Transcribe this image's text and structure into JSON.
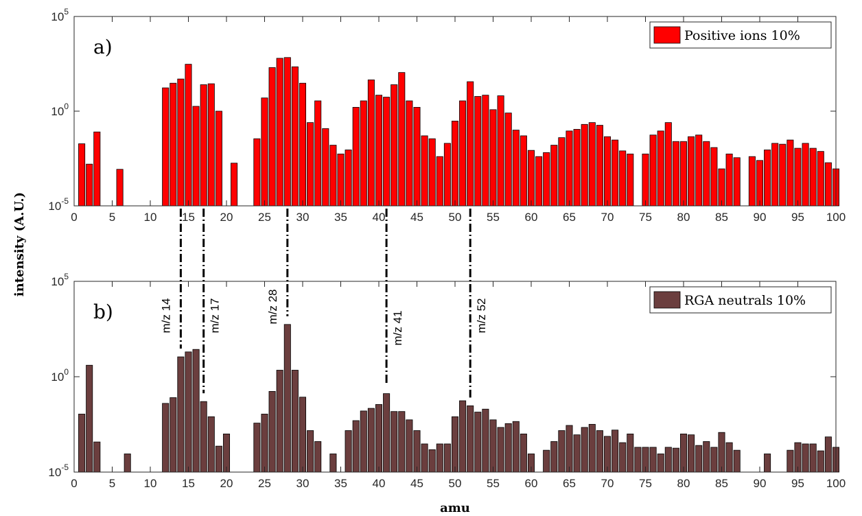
{
  "chart_data": {
    "type": "bar",
    "ylabel": "intensity (A.U.)",
    "xlabel": "amu",
    "xlim": [
      0,
      100
    ],
    "x_ticks": [
      0,
      5,
      10,
      15,
      20,
      25,
      30,
      35,
      40,
      45,
      50,
      55,
      60,
      65,
      70,
      75,
      80,
      85,
      90,
      95,
      100
    ],
    "y_scale": "log",
    "ylim": [
      1e-05,
      100000.0
    ],
    "y_tick_labels": [
      {
        "base": "10",
        "exp": "5"
      },
      {
        "base": "10",
        "exp": "0"
      },
      {
        "base": "10",
        "exp": "-5"
      }
    ],
    "panels": [
      {
        "label": "a)",
        "series_name": "Positive ions 10%",
        "color": "#ff0000",
        "bars": [
          [
            1,
            0.019
          ],
          [
            2,
            0.0016
          ],
          [
            3,
            0.08
          ],
          [
            6,
            0.00085
          ],
          [
            12,
            17
          ],
          [
            13,
            30
          ],
          [
            14,
            50
          ],
          [
            15,
            300
          ],
          [
            16,
            1.8
          ],
          [
            17,
            25
          ],
          [
            18,
            28
          ],
          [
            19,
            1.0
          ],
          [
            21,
            0.0018
          ],
          [
            24,
            0.035
          ],
          [
            25,
            5
          ],
          [
            26,
            200
          ],
          [
            27,
            620
          ],
          [
            28,
            680
          ],
          [
            29,
            220
          ],
          [
            30,
            30
          ],
          [
            31,
            0.25
          ],
          [
            32,
            3.5
          ],
          [
            33,
            0.12
          ],
          [
            34,
            0.016
          ],
          [
            35,
            0.0055
          ],
          [
            36,
            0.009
          ],
          [
            37,
            1.6
          ],
          [
            38,
            3.5
          ],
          [
            39,
            45
          ],
          [
            40,
            7
          ],
          [
            41,
            5.5
          ],
          [
            42,
            25
          ],
          [
            43,
            110
          ],
          [
            44,
            3.5
          ],
          [
            45,
            1.6
          ],
          [
            46,
            0.05
          ],
          [
            47,
            0.035
          ],
          [
            48,
            0.004
          ],
          [
            49,
            0.02
          ],
          [
            50,
            0.3
          ],
          [
            51,
            3.5
          ],
          [
            52,
            36
          ],
          [
            53,
            6
          ],
          [
            54,
            7
          ],
          [
            55,
            1.2
          ],
          [
            56,
            6.5
          ],
          [
            57,
            0.8
          ],
          [
            58,
            0.1
          ],
          [
            59,
            0.05
          ],
          [
            60,
            0.0085
          ],
          [
            61,
            0.004
          ],
          [
            62,
            0.0065
          ],
          [
            63,
            0.016
          ],
          [
            64,
            0.04
          ],
          [
            65,
            0.09
          ],
          [
            66,
            0.11
          ],
          [
            67,
            0.2
          ],
          [
            68,
            0.25
          ],
          [
            69,
            0.18
          ],
          [
            70,
            0.045
          ],
          [
            71,
            0.03
          ],
          [
            72,
            0.008
          ],
          [
            73,
            0.0055
          ],
          [
            75,
            0.0055
          ],
          [
            76,
            0.055
          ],
          [
            77,
            0.09
          ],
          [
            78,
            0.25
          ],
          [
            79,
            0.025
          ],
          [
            80,
            0.025
          ],
          [
            81,
            0.045
          ],
          [
            82,
            0.055
          ],
          [
            83,
            0.025
          ],
          [
            84,
            0.012
          ],
          [
            85,
            0.0009
          ],
          [
            86,
            0.0055
          ],
          [
            87,
            0.0035
          ],
          [
            89,
            0.004
          ],
          [
            90,
            0.0025
          ],
          [
            91,
            0.009
          ],
          [
            92,
            0.02
          ],
          [
            93,
            0.018
          ],
          [
            94,
            0.03
          ],
          [
            95,
            0.011
          ],
          [
            96,
            0.02
          ],
          [
            97,
            0.011
          ],
          [
            98,
            0.0075
          ],
          [
            99,
            0.0019
          ],
          [
            100,
            0.0009
          ]
        ]
      },
      {
        "label": "b)",
        "series_name": "RGA neutrals 10%",
        "color": "#6b3e3e",
        "bars": [
          [
            1,
            0.011
          ],
          [
            2,
            4
          ],
          [
            3,
            0.00038
          ],
          [
            7,
            9e-05
          ],
          [
            12,
            0.04
          ],
          [
            13,
            0.08
          ],
          [
            14,
            11
          ],
          [
            15,
            20
          ],
          [
            16,
            27
          ],
          [
            17,
            0.05
          ],
          [
            18,
            0.008
          ],
          [
            19,
            0.00023
          ],
          [
            20,
            0.001
          ],
          [
            24,
            0.0037
          ],
          [
            25,
            0.011
          ],
          [
            26,
            0.17
          ],
          [
            27,
            2.2
          ],
          [
            28,
            550
          ],
          [
            29,
            2.2
          ],
          [
            30,
            0.085
          ],
          [
            31,
            0.0015
          ],
          [
            32,
            0.0004
          ],
          [
            34,
            9e-05
          ],
          [
            36,
            0.0015
          ],
          [
            37,
            0.005
          ],
          [
            38,
            0.016
          ],
          [
            39,
            0.022
          ],
          [
            40,
            0.035
          ],
          [
            41,
            0.13
          ],
          [
            42,
            0.015
          ],
          [
            43,
            0.015
          ],
          [
            44,
            0.0055
          ],
          [
            45,
            0.0015
          ],
          [
            46,
            0.0003
          ],
          [
            47,
            0.00015
          ],
          [
            48,
            0.0003
          ],
          [
            49,
            0.0003
          ],
          [
            50,
            0.008
          ],
          [
            51,
            0.055
          ],
          [
            52,
            0.03
          ],
          [
            53,
            0.014
          ],
          [
            54,
            0.02
          ],
          [
            55,
            0.0055
          ],
          [
            56,
            0.0022
          ],
          [
            57,
            0.0035
          ],
          [
            58,
            0.0045
          ],
          [
            59,
            0.001
          ],
          [
            60,
            9e-05
          ],
          [
            62,
            0.00014
          ],
          [
            63,
            0.0004
          ],
          [
            64,
            0.0015
          ],
          [
            65,
            0.0028
          ],
          [
            66,
            0.0009
          ],
          [
            67,
            0.0022
          ],
          [
            68,
            0.0032
          ],
          [
            69,
            0.0015
          ],
          [
            70,
            0.00075
          ],
          [
            71,
            0.0016
          ],
          [
            72,
            0.00035
          ],
          [
            73,
            0.001
          ],
          [
            74,
            0.0002
          ],
          [
            75,
            0.0002
          ],
          [
            76,
            0.0002
          ],
          [
            77,
            9e-05
          ],
          [
            78,
            0.0002
          ],
          [
            79,
            0.00018
          ],
          [
            80,
            0.001
          ],
          [
            81,
            0.0009
          ],
          [
            82,
            0.00025
          ],
          [
            83,
            0.0004
          ],
          [
            84,
            0.0002
          ],
          [
            85,
            0.0012
          ],
          [
            86,
            0.00035
          ],
          [
            87,
            0.00014
          ],
          [
            91,
            9e-05
          ],
          [
            94,
            0.00014
          ],
          [
            95,
            0.00035
          ],
          [
            96,
            0.0003
          ],
          [
            97,
            0.0003
          ],
          [
            98,
            0.00013
          ],
          [
            99,
            0.0007
          ],
          [
            100,
            0.0002
          ]
        ]
      }
    ],
    "annotations": [
      {
        "text": "m/z 14",
        "x": 14
      },
      {
        "text": "m/z 17",
        "x": 17
      },
      {
        "text": "m/z 28",
        "x": 28
      },
      {
        "text": "m/z 41",
        "x": 41
      },
      {
        "text": "m/z 52",
        "x": 52
      }
    ]
  }
}
